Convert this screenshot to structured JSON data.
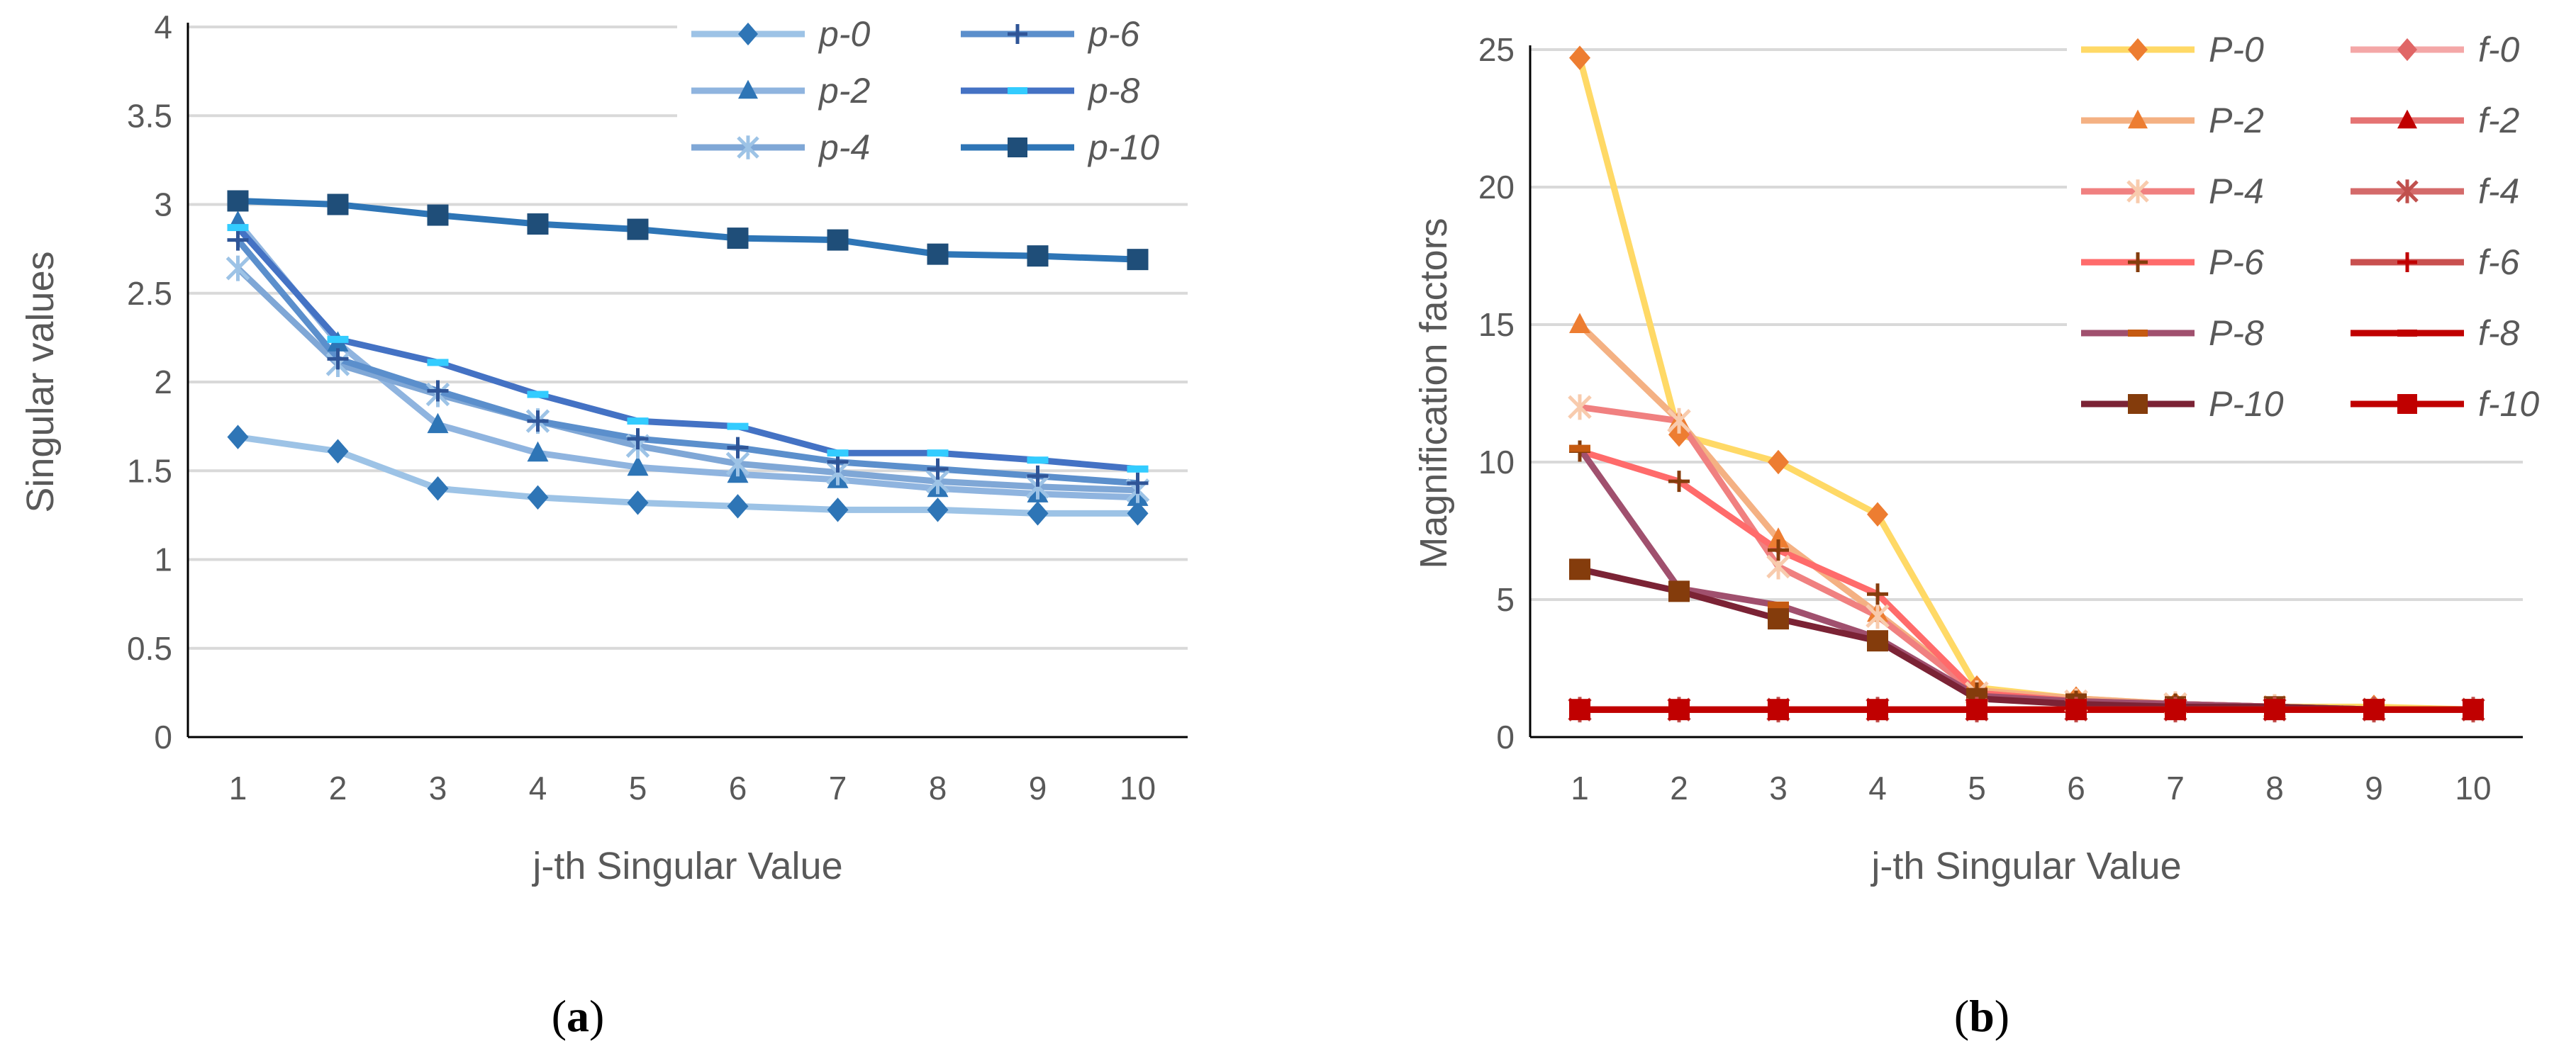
{
  "chart_data": [
    {
      "id": "a",
      "type": "line",
      "caption_letter": "a",
      "xlabel": "j-th Singular Value",
      "ylabel": "Singular values",
      "categories": [
        "1",
        "2",
        "3",
        "4",
        "5",
        "6",
        "7",
        "8",
        "9",
        "10"
      ],
      "ylim": [
        0,
        4
      ],
      "yticks": [
        "0",
        "0.5",
        "1",
        "1.5",
        "2",
        "2.5",
        "3",
        "3.5",
        "4"
      ],
      "grid": true,
      "legend_position": "top-right",
      "series": [
        {
          "name": "p-0",
          "color": "#2E75B6",
          "line_color": "#9DC3E6",
          "marker": "diamond",
          "values": [
            1.69,
            1.61,
            1.4,
            1.35,
            1.32,
            1.3,
            1.28,
            1.28,
            1.26,
            1.26
          ]
        },
        {
          "name": "p-2",
          "color": "#2E75B6",
          "line_color": "#8FB4DF",
          "marker": "triangle",
          "values": [
            2.9,
            2.22,
            1.76,
            1.6,
            1.52,
            1.48,
            1.45,
            1.4,
            1.37,
            1.35
          ]
        },
        {
          "name": "p-4",
          "color": "#9DC3E6",
          "line_color": "#7FA7D6",
          "marker": "star",
          "values": [
            2.64,
            2.1,
            1.93,
            1.78,
            1.64,
            1.54,
            1.49,
            1.44,
            1.41,
            1.39
          ]
        },
        {
          "name": "p-6",
          "color": "#2F5597",
          "line_color": "#5B8FCC",
          "marker": "plus",
          "values": [
            2.8,
            2.13,
            1.95,
            1.78,
            1.68,
            1.63,
            1.55,
            1.51,
            1.47,
            1.43
          ]
        },
        {
          "name": "p-8",
          "color": "#33CCFF",
          "line_color": "#4472C4",
          "marker": "dash",
          "values": [
            2.87,
            2.24,
            2.11,
            1.93,
            1.78,
            1.75,
            1.6,
            1.6,
            1.56,
            1.51
          ]
        },
        {
          "name": "p-10",
          "color": "#1F4E79",
          "line_color": "#2E75B6",
          "marker": "square",
          "values": [
            3.02,
            3.0,
            2.94,
            2.89,
            2.86,
            2.81,
            2.8,
            2.72,
            2.71,
            2.69
          ]
        }
      ]
    },
    {
      "id": "b",
      "type": "line",
      "caption_letter": "b",
      "xlabel": "j-th Singular Value",
      "ylabel": "Magnification factors",
      "categories": [
        "1",
        "2",
        "3",
        "4",
        "5",
        "6",
        "7",
        "8",
        "9",
        "10"
      ],
      "ylim": [
        0,
        25
      ],
      "yticks": [
        "0",
        "5",
        "10",
        "15",
        "20",
        "25"
      ],
      "grid": true,
      "legend_position": "top-right",
      "series": [
        {
          "name": "P-0",
          "color": "#ED7D31",
          "line_color": "#FFD966",
          "marker": "diamond",
          "values": [
            24.7,
            11.0,
            10.0,
            8.1,
            1.8,
            1.4,
            1.2,
            1.1,
            1.1,
            1.0
          ]
        },
        {
          "name": "P-2",
          "color": "#ED7D31",
          "line_color": "#F4B183",
          "marker": "triangle",
          "values": [
            15.0,
            11.5,
            7.2,
            4.5,
            1.7,
            1.4,
            1.2,
            1.1,
            1.0,
            1.0
          ]
        },
        {
          "name": "P-4",
          "color": "#F8CBAD",
          "line_color": "#F08080",
          "marker": "star",
          "values": [
            12.0,
            11.5,
            6.2,
            4.4,
            1.6,
            1.3,
            1.2,
            1.1,
            1.0,
            1.0
          ]
        },
        {
          "name": "P-6",
          "color": "#843C0C",
          "line_color": "#FF6B6B",
          "marker": "plus",
          "values": [
            10.4,
            9.3,
            6.8,
            5.2,
            1.6,
            1.3,
            1.2,
            1.1,
            1.0,
            1.0
          ]
        },
        {
          "name": "P-8",
          "color": "#C55A11",
          "line_color": "#A0506E",
          "marker": "dash",
          "values": [
            10.5,
            5.4,
            4.8,
            3.6,
            1.5,
            1.3,
            1.2,
            1.1,
            1.0,
            1.0
          ]
        },
        {
          "name": "P-10",
          "color": "#843C0C",
          "line_color": "#7B2335",
          "marker": "square",
          "values": [
            6.1,
            5.3,
            4.3,
            3.5,
            1.4,
            1.2,
            1.1,
            1.1,
            1.0,
            1.0
          ]
        },
        {
          "name": "f-0",
          "color": "#E06666",
          "line_color": "#F4A7A7",
          "marker": "diamond",
          "values": [
            1.0,
            1.0,
            1.0,
            1.0,
            1.0,
            1.0,
            1.0,
            1.0,
            1.0,
            1.0
          ]
        },
        {
          "name": "f-2",
          "color": "#C00000",
          "line_color": "#E57373",
          "marker": "triangle",
          "values": [
            1.0,
            1.0,
            1.0,
            1.0,
            1.0,
            1.0,
            1.0,
            1.0,
            1.0,
            1.0
          ]
        },
        {
          "name": "f-4",
          "color": "#C0504D",
          "line_color": "#D46A6A",
          "marker": "star",
          "values": [
            1.0,
            1.0,
            1.0,
            1.0,
            1.0,
            1.0,
            1.0,
            1.0,
            1.0,
            1.0
          ]
        },
        {
          "name": "f-6",
          "color": "#C00000",
          "line_color": "#C9504F",
          "marker": "plus",
          "values": [
            1.0,
            1.0,
            1.0,
            1.0,
            1.0,
            1.0,
            1.0,
            1.0,
            1.0,
            1.0
          ]
        },
        {
          "name": "f-8",
          "color": "#C00000",
          "line_color": "#C00000",
          "marker": "dash",
          "values": [
            1.0,
            1.0,
            1.0,
            1.0,
            1.0,
            1.0,
            1.0,
            1.0,
            1.0,
            1.0
          ]
        },
        {
          "name": "f-10",
          "color": "#C00000",
          "line_color": "#C00000",
          "marker": "square",
          "values": [
            1.0,
            1.0,
            1.0,
            1.0,
            1.0,
            1.0,
            1.0,
            1.0,
            1.0,
            1.0
          ]
        }
      ]
    }
  ]
}
